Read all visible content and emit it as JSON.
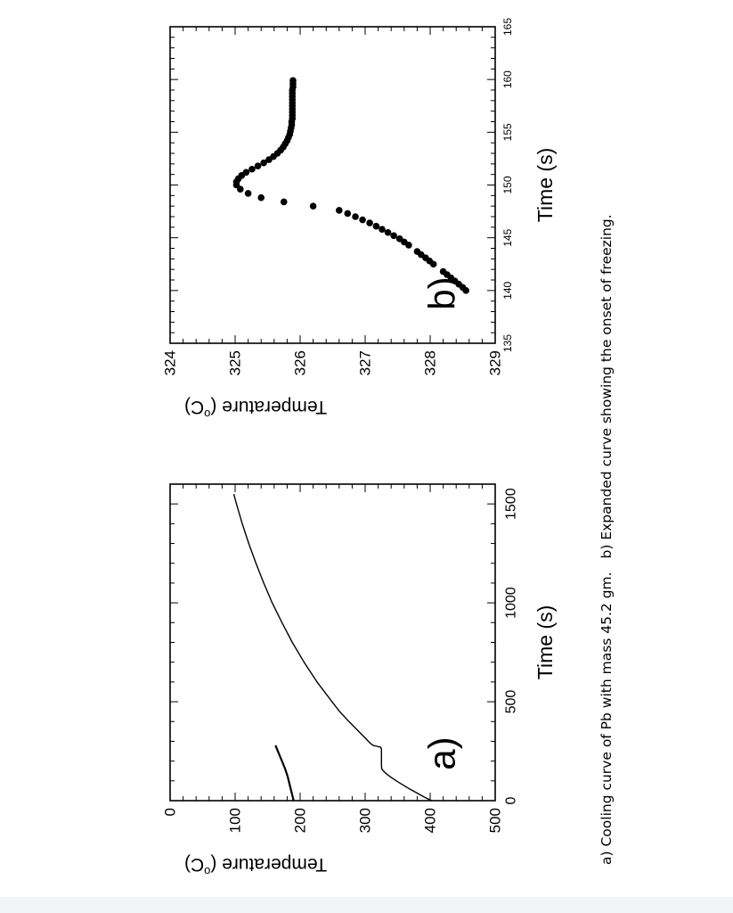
{
  "caption": {
    "part_a": "a) Cooling curve of Pb with mass 45.2 gm.",
    "part_b": "b) Expanded curve showing the onset of freezing."
  },
  "chart_data": [
    {
      "type": "line",
      "panel_label": "a)",
      "xlabel": "Time (s)",
      "ylabel": "Temperature (°C)",
      "ylabel_main": "Temperature (",
      "ylabel_sup": "o",
      "ylabel_unit": "C)",
      "xlim": [
        0,
        1600
      ],
      "ylim": [
        0,
        500
      ],
      "xticks": [
        0,
        500,
        1000,
        1500
      ],
      "yticks": [
        0,
        100,
        200,
        300,
        400,
        500
      ],
      "xtick_labels": [
        "0",
        "500",
        "1000",
        "1500"
      ],
      "ytick_labels": [
        "0",
        "100",
        "200",
        "300",
        "400",
        "500"
      ],
      "series": [
        {
          "x": [
            0,
            20,
            40,
            60,
            80,
            100,
            120,
            140,
            160,
            180,
            190,
            200,
            220,
            240,
            260,
            270,
            275,
            280,
            290,
            300,
            350,
            400,
            450,
            500,
            600,
            700,
            800,
            900,
            1000,
            1100,
            1200,
            1300,
            1400,
            1500,
            1550
          ],
          "y": [
            402,
            390,
            379,
            368,
            358,
            348,
            339,
            331,
            325.5,
            325,
            325,
            325,
            325,
            325,
            325,
            324,
            318,
            312,
            308,
            305,
            290,
            275,
            261,
            249,
            226,
            206,
            188,
            172,
            157,
            144,
            132,
            121,
            111,
            102,
            98
          ]
        },
        {
          "x": [
            0,
            40,
            80,
            120,
            160,
            200,
            240,
            280
          ],
          "y": [
            190,
            187,
            184,
            181,
            177,
            172,
            167,
            162
          ]
        }
      ]
    },
    {
      "type": "scatter",
      "panel_label": "b)",
      "xlabel": "Time (s)",
      "ylabel": "Temperature (°C)",
      "ylabel_main": "Temperature (",
      "ylabel_sup": "o",
      "ylabel_unit": "C)",
      "xlim": [
        135,
        165
      ],
      "ylim": [
        324,
        329
      ],
      "xticks": [
        135,
        140,
        145,
        150,
        155,
        160,
        165
      ],
      "yticks": [
        324,
        325,
        326,
        327,
        328,
        329
      ],
      "xtick_labels": [
        "135",
        "140",
        "145",
        "150",
        "155",
        "160",
        "165"
      ],
      "ytick_labels": [
        "324",
        "325",
        "326",
        "327",
        "328",
        "329"
      ],
      "series": [
        {
          "x": [
            140.0,
            140.3,
            140.6,
            140.9,
            141.2,
            141.5,
            141.8,
            142.5,
            142.8,
            143.1,
            143.4,
            143.7,
            144.3,
            144.6,
            144.9,
            145.2,
            145.5,
            145.8,
            146.1,
            146.4,
            146.7,
            147.0,
            147.3,
            147.6,
            148.0,
            148.4,
            148.8,
            149.2,
            149.6,
            150.0,
            150.3,
            150.6,
            150.9,
            151.2,
            151.5,
            151.8,
            152.1,
            152.4,
            152.7,
            153.0,
            153.3,
            153.6,
            153.9,
            154.2,
            154.5,
            154.8,
            155.1,
            155.4,
            155.7,
            156.0,
            156.3,
            156.6,
            156.9,
            157.2,
            157.5,
            157.8,
            158.1,
            158.4,
            158.7,
            159.0,
            159.3,
            159.6,
            159.9
          ],
          "y": [
            328.55,
            328.5,
            328.44,
            328.38,
            328.32,
            328.26,
            328.2,
            328.05,
            327.99,
            327.93,
            327.86,
            327.8,
            327.67,
            327.6,
            327.53,
            327.44,
            327.35,
            327.26,
            327.17,
            327.07,
            326.96,
            326.85,
            326.73,
            326.6,
            326.2,
            325.75,
            325.4,
            325.2,
            325.08,
            325.02,
            325.02,
            325.05,
            325.1,
            325.17,
            325.26,
            325.35,
            325.44,
            325.52,
            325.59,
            325.65,
            325.7,
            325.74,
            325.77,
            325.8,
            325.82,
            325.84,
            325.85,
            325.86,
            325.87,
            325.87,
            325.88,
            325.88,
            325.88,
            325.88,
            325.88,
            325.88,
            325.88,
            325.88,
            325.88,
            325.88,
            325.89,
            325.89,
            325.89
          ]
        }
      ]
    }
  ]
}
